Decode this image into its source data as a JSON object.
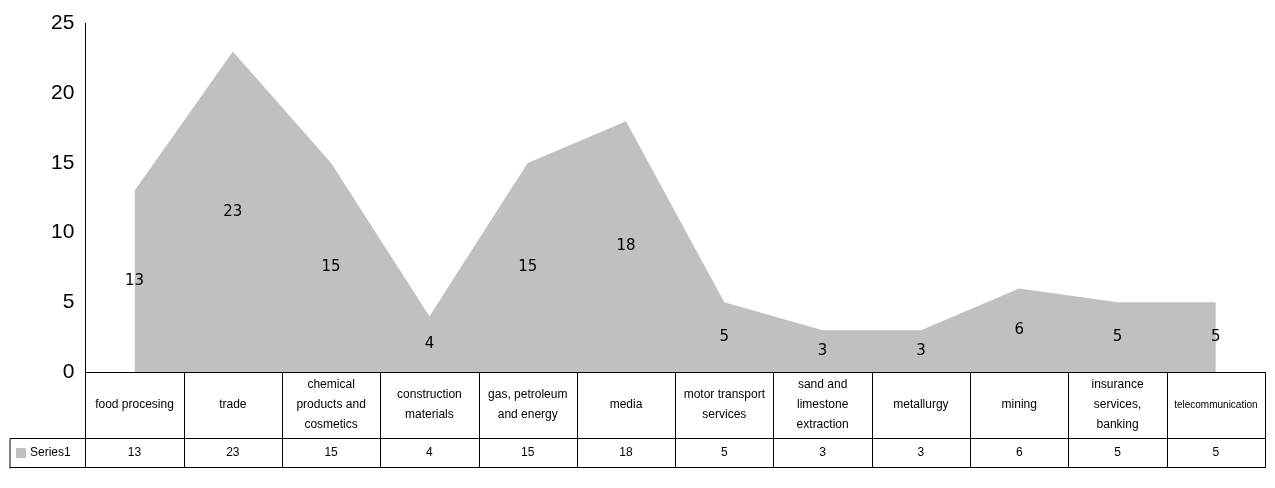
{
  "chart_data": {
    "type": "area",
    "categories": [
      "food procesing",
      "trade",
      "chemical products and cosmetics",
      "construction materials",
      "gas, petroleum and energy",
      "media",
      "motor transport services",
      "sand and limestone extraction",
      "metallurgy",
      "mining",
      "insurance services, banking",
      "telecommunication"
    ],
    "series": [
      {
        "name": "Series1",
        "color": "#c0c0c0",
        "values": [
          13,
          23,
          15,
          4,
          15,
          18,
          5,
          3,
          3,
          6,
          5,
          5
        ]
      }
    ],
    "annotations": [
      "13",
      "23",
      "15",
      "4",
      "15",
      "18",
      "5",
      "3",
      "3",
      "6",
      "5",
      "5"
    ],
    "ylim": [
      0,
      25
    ],
    "yticks": [
      0,
      5,
      10,
      15,
      20,
      25
    ],
    "grid": false,
    "data_labels": true
  }
}
